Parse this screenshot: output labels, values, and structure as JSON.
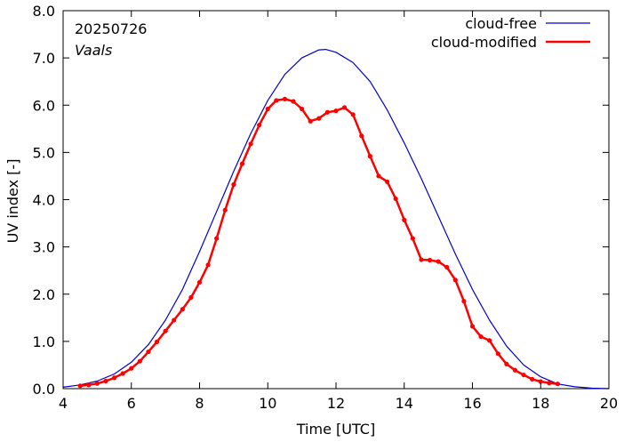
{
  "chart_data": {
    "type": "line",
    "annotations": [
      "20250726",
      "Vaals"
    ],
    "xlabel": "Time  [UTC]",
    "ylabel": "UV index  [-]",
    "xlim": [
      4,
      20
    ],
    "ylim": [
      0,
      8
    ],
    "xticks": [
      4,
      6,
      8,
      10,
      12,
      14,
      16,
      18,
      20
    ],
    "xtick_labels": [
      "4",
      "6",
      "8",
      "10",
      "12",
      "14",
      "16",
      "18",
      "20"
    ],
    "yticks": [
      0,
      1,
      2,
      3,
      4,
      5,
      6,
      7,
      8
    ],
    "ytick_labels": [
      "0.0",
      "1.0",
      "2.0",
      "3.0",
      "4.0",
      "5.0",
      "6.0",
      "7.0",
      "8.0"
    ],
    "grid": false,
    "legend_position": "top-right",
    "series": [
      {
        "name": "cloud-free",
        "color": "#0000cc",
        "markers": false,
        "x": [
          4.0,
          4.5,
          5.0,
          5.5,
          6.0,
          6.5,
          7.0,
          7.5,
          8.0,
          8.5,
          9.0,
          9.5,
          10.0,
          10.5,
          11.0,
          11.5,
          11.7,
          12.0,
          12.5,
          13.0,
          13.5,
          14.0,
          14.5,
          15.0,
          15.5,
          16.0,
          16.5,
          17.0,
          17.5,
          18.0,
          18.5,
          19.0,
          19.5,
          20.0
        ],
        "y": [
          0.03,
          0.08,
          0.16,
          0.31,
          0.56,
          0.93,
          1.45,
          2.1,
          2.9,
          3.75,
          4.6,
          5.4,
          6.1,
          6.65,
          7.0,
          7.17,
          7.18,
          7.12,
          6.9,
          6.5,
          5.9,
          5.2,
          4.45,
          3.65,
          2.85,
          2.1,
          1.45,
          0.9,
          0.5,
          0.25,
          0.1,
          0.04,
          0.01,
          0.0
        ]
      },
      {
        "name": "cloud-modified",
        "color": "#ff0000",
        "markers": true,
        "x": [
          4.5,
          4.75,
          5.0,
          5.25,
          5.5,
          5.75,
          6.0,
          6.25,
          6.5,
          6.75,
          7.0,
          7.25,
          7.5,
          7.75,
          8.0,
          8.25,
          8.5,
          8.75,
          9.0,
          9.25,
          9.5,
          9.75,
          10.0,
          10.25,
          10.5,
          10.75,
          11.0,
          11.25,
          11.5,
          11.75,
          12.0,
          12.25,
          12.5,
          12.75,
          13.0,
          13.25,
          13.5,
          13.75,
          14.0,
          14.25,
          14.5,
          14.75,
          15.0,
          15.25,
          15.5,
          15.75,
          16.0,
          16.25,
          16.5,
          16.75,
          17.0,
          17.25,
          17.5,
          17.75,
          18.0,
          18.25,
          18.5
        ],
        "y": [
          0.06,
          0.08,
          0.11,
          0.16,
          0.23,
          0.32,
          0.43,
          0.58,
          0.78,
          0.99,
          1.22,
          1.45,
          1.68,
          1.93,
          2.25,
          2.62,
          3.18,
          3.78,
          4.32,
          4.76,
          5.18,
          5.58,
          5.92,
          6.1,
          6.13,
          6.08,
          5.92,
          5.66,
          5.72,
          5.85,
          5.88,
          5.95,
          5.8,
          5.35,
          4.92,
          4.5,
          4.38,
          4.02,
          3.57,
          3.18,
          2.73,
          2.72,
          2.69,
          2.57,
          2.3,
          1.85,
          1.32,
          1.1,
          1.02,
          0.74,
          0.52,
          0.39,
          0.29,
          0.2,
          0.15,
          0.12,
          0.1
        ]
      }
    ]
  }
}
